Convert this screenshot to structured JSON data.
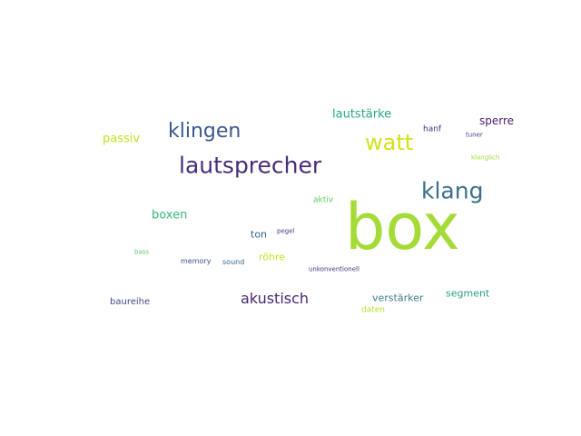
{
  "wordcloud": {
    "words": [
      {
        "text": "box",
        "color": "#a5db36"
      },
      {
        "text": "lautsprecher",
        "color": "#472d7b"
      },
      {
        "text": "klang",
        "color": "#3e6f8c"
      },
      {
        "text": "klingen",
        "color": "#3a5a8c"
      },
      {
        "text": "watt",
        "color": "#d4e21a"
      },
      {
        "text": "akustisch",
        "color": "#482677"
      },
      {
        "text": "lautstärke",
        "color": "#26a784"
      },
      {
        "text": "boxen",
        "color": "#38b977"
      },
      {
        "text": "passiv",
        "color": "#c2df23"
      },
      {
        "text": "sperre",
        "color": "#481a6c"
      },
      {
        "text": "segment",
        "color": "#2a9d8c"
      },
      {
        "text": "verstärker",
        "color": "#3b7c8c"
      },
      {
        "text": "röhre",
        "color": "#c8e020"
      },
      {
        "text": "ton",
        "color": "#31688e"
      },
      {
        "text": "baureihe",
        "color": "#3e4a89"
      },
      {
        "text": "hanf",
        "color": "#472a7a"
      },
      {
        "text": "aktiv",
        "color": "#5ec962"
      },
      {
        "text": "daten",
        "color": "#b5de2b"
      },
      {
        "text": "sound",
        "color": "#3e5f8e"
      },
      {
        "text": "memory",
        "color": "#3b528b"
      },
      {
        "text": "tuner",
        "color": "#424086"
      },
      {
        "text": "pegel",
        "color": "#46337e"
      },
      {
        "text": "unkonventionell",
        "color": "#472f7d"
      },
      {
        "text": "klanglich",
        "color": "#9fda3a"
      },
      {
        "text": "bass",
        "color": "#5cc863"
      }
    ]
  }
}
